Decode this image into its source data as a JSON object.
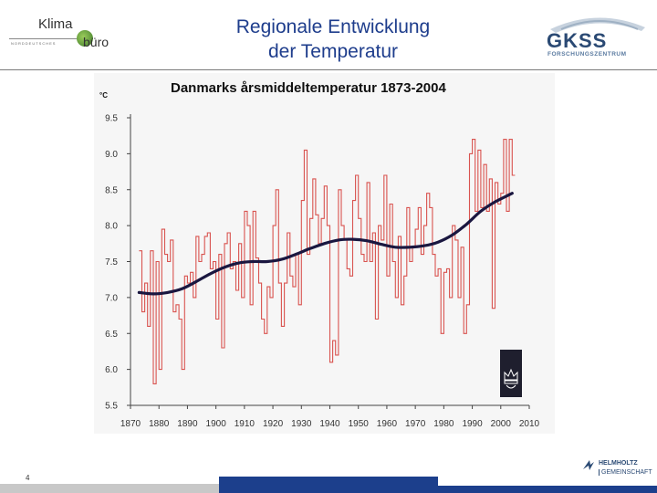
{
  "header": {
    "title_line1": "Regionale Entwicklung",
    "title_line2": "der Temperatur",
    "logo_left_top": "Klima",
    "logo_left_bottom": "büro",
    "logo_left_sub": "NORDDEUTSCHES",
    "logo_right_main": "GKSS",
    "logo_right_sub": "FORSCHUNGSZENTRUM"
  },
  "footer": {
    "page_number": "4",
    "helmholtz_line1": "HELMHOLTZ",
    "helmholtz_line2": "GEMEINSCHAFT"
  },
  "colors": {
    "title": "#1e3d8c",
    "series_annual": "#d9534f",
    "series_smooth": "#1a1740",
    "panel": "#f6f6f6",
    "footer_blue": "#1c3f8c"
  },
  "chart_data": {
    "type": "line",
    "title": "Danmarks årsmiddeltemperatur 1873-2004",
    "ylabel": "°C",
    "xlabel": "",
    "xlim": [
      1870,
      2010
    ],
    "ylim": [
      5.5,
      9.5
    ],
    "x_ticks": [
      1870,
      1880,
      1890,
      1900,
      1910,
      1920,
      1930,
      1940,
      1950,
      1960,
      1970,
      1980,
      1990,
      2000,
      2010
    ],
    "y_ticks": [
      "5.5",
      "6.0",
      "6.5",
      "7.0",
      "7.5",
      "8.0",
      "8.5",
      "9.0",
      "9.5"
    ],
    "grid": false,
    "series": [
      {
        "style": "step",
        "x": [
          1873,
          1874,
          1875,
          1876,
          1877,
          1878,
          1879,
          1880,
          1881,
          1882,
          1883,
          1884,
          1885,
          1886,
          1887,
          1888,
          1889,
          1890,
          1891,
          1892,
          1893,
          1894,
          1895,
          1896,
          1897,
          1898,
          1899,
          1900,
          1901,
          1902,
          1903,
          1904,
          1905,
          1906,
          1907,
          1908,
          1909,
          1910,
          1911,
          1912,
          1913,
          1914,
          1915,
          1916,
          1917,
          1918,
          1919,
          1920,
          1921,
          1922,
          1923,
          1924,
          1925,
          1926,
          1927,
          1928,
          1929,
          1930,
          1931,
          1932,
          1933,
          1934,
          1935,
          1936,
          1937,
          1938,
          1939,
          1940,
          1941,
          1942,
          1943,
          1944,
          1945,
          1946,
          1947,
          1948,
          1949,
          1950,
          1951,
          1952,
          1953,
          1954,
          1955,
          1956,
          1957,
          1958,
          1959,
          1960,
          1961,
          1962,
          1963,
          1964,
          1965,
          1966,
          1967,
          1968,
          1969,
          1970,
          1971,
          1972,
          1973,
          1974,
          1975,
          1976,
          1977,
          1978,
          1979,
          1980,
          1981,
          1982,
          1983,
          1984,
          1985,
          1986,
          1987,
          1988,
          1989,
          1990,
          1991,
          1992,
          1993,
          1994,
          1995,
          1996,
          1997,
          1998,
          1999,
          2000,
          2001,
          2002,
          2003,
          2004
        ],
        "values": [
          7.65,
          6.8,
          7.2,
          6.6,
          7.65,
          5.8,
          7.5,
          6.0,
          7.95,
          7.6,
          7.5,
          7.8,
          6.8,
          6.9,
          6.7,
          6.0,
          7.3,
          7.2,
          7.35,
          7.0,
          7.85,
          7.5,
          7.6,
          7.85,
          7.9,
          7.4,
          7.5,
          6.7,
          7.6,
          6.3,
          7.75,
          7.9,
          7.4,
          7.5,
          7.1,
          7.75,
          7.0,
          8.2,
          8.0,
          6.9,
          8.2,
          7.55,
          7.2,
          6.7,
          6.5,
          7.15,
          7.0,
          8.0,
          8.5,
          7.2,
          6.6,
          7.2,
          7.9,
          7.3,
          7.15,
          7.6,
          6.9,
          8.35,
          9.05,
          7.6,
          8.1,
          8.65,
          8.15,
          7.75,
          8.1,
          8.55,
          8.0,
          6.1,
          6.4,
          6.2,
          8.5,
          8.0,
          7.8,
          7.4,
          7.3,
          8.35,
          8.7,
          8.1,
          7.6,
          7.5,
          8.6,
          7.5,
          7.9,
          6.7,
          8.0,
          7.8,
          8.7,
          7.3,
          8.3,
          7.5,
          7.0,
          7.85,
          6.9,
          7.3,
          8.25,
          7.5,
          7.7,
          7.95,
          8.25,
          7.6,
          8.0,
          8.45,
          8.25,
          7.6,
          7.3,
          7.4,
          6.5,
          7.35,
          7.4,
          7.0,
          8.0,
          7.8,
          7.0,
          7.7,
          6.5,
          6.9,
          9.0,
          9.2,
          8.2,
          9.05,
          8.25,
          8.85,
          8.2,
          8.65,
          6.85,
          8.6,
          8.3,
          8.45,
          9.2,
          8.2,
          9.2,
          8.7
        ]
      },
      {
        "style": "smooth",
        "x": [
          1873,
          1878,
          1883,
          1888,
          1893,
          1898,
          1903,
          1908,
          1913,
          1918,
          1923,
          1928,
          1933,
          1938,
          1943,
          1948,
          1953,
          1958,
          1963,
          1968,
          1973,
          1978,
          1983,
          1988,
          1993,
          1998,
          2004
        ],
        "values": [
          7.07,
          7.05,
          7.07,
          7.12,
          7.22,
          7.33,
          7.42,
          7.48,
          7.5,
          7.5,
          7.53,
          7.6,
          7.68,
          7.75,
          7.8,
          7.81,
          7.79,
          7.74,
          7.7,
          7.7,
          7.72,
          7.77,
          7.87,
          8.02,
          8.2,
          8.33,
          8.45
        ]
      }
    ]
  }
}
